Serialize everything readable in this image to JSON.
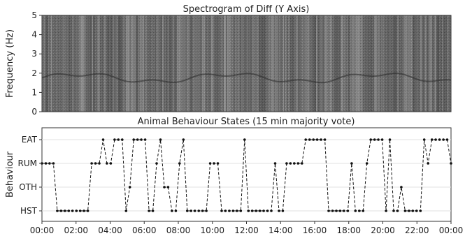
{
  "chart_data": [
    {
      "type": "heatmap",
      "title": "Spectrogram of Diff (Y Axis)",
      "ylabel": "Frequency (Hz)",
      "ylim": [
        0,
        5
      ],
      "yticks": [
        "0",
        "1",
        "2",
        "3",
        "4",
        "5"
      ],
      "colormap": "grayscale"
    },
    {
      "type": "line",
      "title": "Animal Behaviour States (15 min majority vote)",
      "ylabel": "Behaviour",
      "states": [
        "HST",
        "OTH",
        "RUM",
        "EAT"
      ],
      "xticks": [
        "00:00",
        "02:00",
        "04:00",
        "06:00",
        "08:00",
        "10:00",
        "12:00",
        "14:00",
        "16:00",
        "18:00",
        "20:00",
        "22:00",
        "00:00"
      ],
      "xlim_hours": [
        0,
        24
      ],
      "grid": true,
      "series": [
        {
          "values": [
            "RUM",
            "RUM",
            "RUM",
            "RUM",
            "HST",
            "HST",
            "HST",
            "HST",
            "HST",
            "HST",
            "HST",
            "HST",
            "HST",
            "RUM",
            "RUM",
            "RUM",
            "EAT",
            "RUM",
            "RUM",
            "EAT",
            "EAT",
            "EAT",
            "HST",
            "OTH",
            "EAT",
            "EAT",
            "EAT",
            "EAT",
            "HST",
            "HST",
            "RUM",
            "EAT",
            "OTH",
            "OTH",
            "HST",
            "HST",
            "RUM",
            "EAT",
            "HST",
            "HST",
            "HST",
            "HST",
            "HST",
            "HST",
            "RUM",
            "RUM",
            "RUM",
            "HST",
            "HST",
            "HST",
            "HST",
            "HST",
            "HST",
            "EAT",
            "HST",
            "HST",
            "HST",
            "HST",
            "HST",
            "HST",
            "HST",
            "RUM",
            "HST",
            "HST",
            "RUM",
            "RUM",
            "RUM",
            "RUM",
            "RUM",
            "EAT",
            "EAT",
            "EAT",
            "EAT",
            "EAT",
            "EAT",
            "HST",
            "HST",
            "HST",
            "HST",
            "HST",
            "HST",
            "RUM",
            "HST",
            "HST",
            "HST",
            "RUM",
            "EAT",
            "EAT",
            "EAT",
            "EAT",
            "HST",
            "EAT",
            "HST",
            "HST",
            "OTH",
            "HST",
            "HST",
            "HST",
            "HST",
            "HST",
            "EAT",
            "RUM",
            "EAT",
            "EAT",
            "EAT",
            "EAT",
            "EAT",
            "RUM"
          ]
        }
      ]
    }
  ]
}
